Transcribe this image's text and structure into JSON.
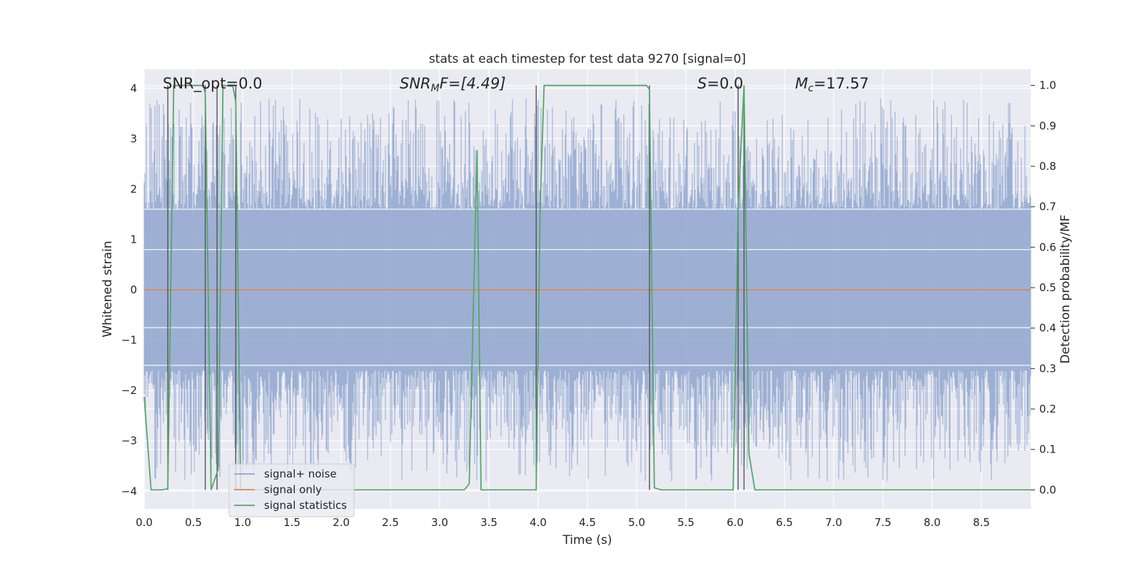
{
  "chart_data": {
    "type": "line",
    "title": "stats at each timestep for test data 9270 [signal=0]",
    "xlabel": "Time (s)",
    "ylabel": "Whitened strain",
    "y2label": "Detection probability/MF",
    "xlim": [
      0.0,
      9.0
    ],
    "ylim": [
      -4.35,
      4.38
    ],
    "y2lim": [
      -0.047,
      1.04
    ],
    "x_ticks": [
      "0.0",
      "0.5",
      "1.0",
      "1.5",
      "2.0",
      "2.5",
      "3.0",
      "3.5",
      "4.0",
      "4.5",
      "5.0",
      "5.5",
      "6.0",
      "6.5",
      "7.0",
      "7.5",
      "8.0",
      "8.5"
    ],
    "y_ticks": [
      "−4",
      "−3",
      "−2",
      "−1",
      "0",
      "1",
      "2",
      "3",
      "4"
    ],
    "y2_ticks": [
      "0.0",
      "0.1",
      "0.2",
      "0.3",
      "0.4",
      "0.5",
      "0.6",
      "0.7",
      "0.8",
      "0.9",
      "1.0"
    ],
    "grid": true,
    "legend_position": "lower-left",
    "annotations": [
      {
        "prefix": "SNR_opt=0.0",
        "sub": "",
        "suffix": ""
      },
      {
        "prefix": "SNR",
        "sub": "M",
        "suffix": "F=[4.49]"
      },
      {
        "prefix": "S",
        "sub": "",
        "suffix": "=0.0"
      },
      {
        "prefix": "M",
        "sub": "c",
        "suffix": "=17.57"
      }
    ],
    "series": [
      {
        "name": "signal+ noise",
        "color": "#8fa6cf",
        "kind": "noise",
        "amplitude_envelope": [
          1.6,
          3.8
        ]
      },
      {
        "name": "signal only",
        "color": "#dd8452",
        "x": [
          0.0,
          9.0
        ],
        "y": [
          0.0,
          0.0
        ]
      },
      {
        "name": "signal statistics",
        "color": "#55a868",
        "axis": "right",
        "x": [
          0.0,
          0.07,
          0.18,
          0.24,
          0.3,
          0.6,
          0.62,
          0.68,
          0.75,
          0.8,
          0.9,
          0.93,
          0.98,
          1.03,
          3.25,
          3.3,
          3.38,
          3.42,
          3.48,
          3.98,
          4.02,
          4.06,
          5.1,
          5.13,
          5.18,
          5.25,
          5.98,
          6.03,
          6.09,
          6.14,
          6.2,
          9.0
        ],
        "y": [
          0.23,
          0.0,
          0.0,
          0.003,
          1.0,
          1.0,
          0.98,
          0.0,
          0.05,
          1.0,
          0.998,
          0.96,
          0.0,
          0.0,
          0.0,
          0.015,
          0.84,
          0.0,
          0.0,
          0.0,
          0.7,
          1.0,
          1.0,
          0.99,
          0.005,
          0.0,
          0.0,
          0.7,
          1.0,
          0.09,
          0.0,
          0.0
        ]
      },
      {
        "name": "",
        "color": "#555555",
        "kind": "markers",
        "x": [
          0.24,
          0.62,
          0.74,
          0.93,
          3.98,
          5.13,
          6.03,
          6.09
        ]
      }
    ]
  }
}
